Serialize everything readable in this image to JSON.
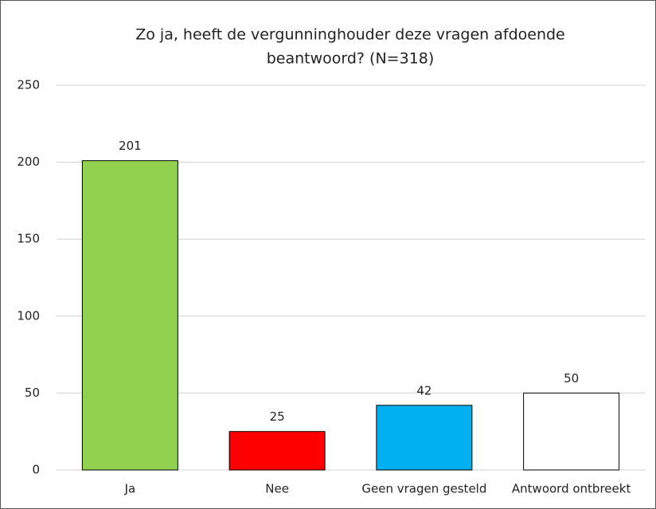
{
  "chart_data": {
    "type": "bar",
    "title": [
      "Zo ja, heeft de vergunninghouder deze vragen afdoende",
      "beantwoord? (N=318)"
    ],
    "categories": [
      "Ja",
      "Nee",
      "Geen vragen gesteld",
      "Antwoord ontbreekt"
    ],
    "values": [
      201,
      25,
      42,
      50
    ],
    "colors": [
      "#92d050",
      "#ff0000",
      "#00b0f0",
      "#ffffff"
    ],
    "ylim": [
      0,
      250
    ],
    "yticks": [
      0,
      50,
      100,
      150,
      200,
      250
    ],
    "grid": true
  }
}
